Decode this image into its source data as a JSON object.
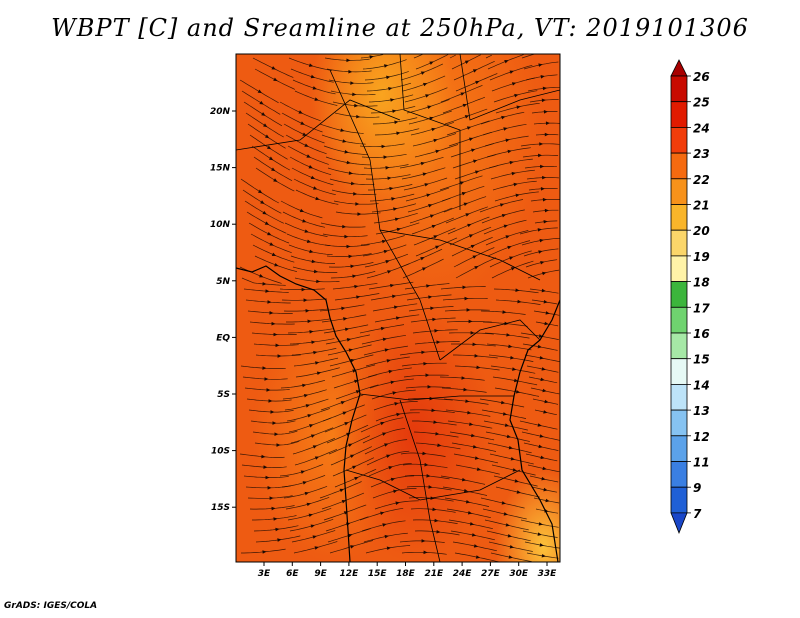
{
  "title": "WBPT [C] and Sreamline at 250hPa, VT: 2019101306",
  "credit": "GrADS: IGES/COLA",
  "map": {
    "lon_labels": [
      "3E",
      "6E",
      "9E",
      "12E",
      "15E",
      "18E",
      "21E",
      "24E",
      "27E",
      "30E",
      "33E"
    ],
    "lat_labels": [
      "20N",
      "15N",
      "10N",
      "5N",
      "EQ",
      "5S",
      "10S",
      "15S"
    ],
    "fill_colors": {
      "dark": "#e8400f",
      "mid": "#ee5b12",
      "light": "#f67c16",
      "yellow": "#f9a41f",
      "pale": "#fcc23a"
    }
  },
  "colorbar": {
    "labels": [
      "26",
      "25",
      "24",
      "23",
      "22",
      "21",
      "20",
      "19",
      "18",
      "17",
      "16",
      "15",
      "14",
      "13",
      "12",
      "11",
      "9",
      "7"
    ],
    "colors": [
      "#a80000",
      "#c80a00",
      "#e11b00",
      "#f23d0a",
      "#f56a10",
      "#f7921b",
      "#f9b52a",
      "#fbd66a",
      "#fff3a8",
      "#3cb53c",
      "#6fd36f",
      "#a6e8a6",
      "#e6f9f5",
      "#bde3f8",
      "#86c3f2",
      "#5ba2ea",
      "#3a7fe2",
      "#2060d6",
      "#1a47c8"
    ]
  }
}
